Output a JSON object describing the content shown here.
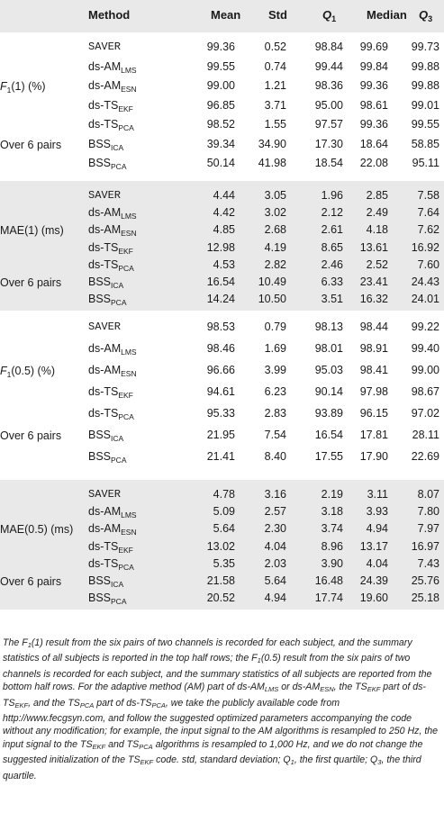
{
  "table": {
    "headers": {
      "method": "Method",
      "mean": "Mean",
      "std": "Std",
      "q1": "Q",
      "q1_sub": "1",
      "median": "Median",
      "q3": "Q",
      "q3_sub": "3"
    },
    "groups": [
      {
        "label_main": "F",
        "label_sub": "1",
        "label_rest": "(1) (%)",
        "over_label": "Over 6 pairs",
        "rows": [
          {
            "method": "SAVER",
            "sub": "",
            "mono": true,
            "mean": "99.36",
            "std": "0.52",
            "q1": "98.84",
            "median": "99.69",
            "q3": "99.73"
          },
          {
            "method": "ds-AM",
            "sub": "LMS",
            "mono": false,
            "mean": "99.55",
            "std": "0.74",
            "q1": "99.44",
            "median": "99.84",
            "q3": "99.88"
          },
          {
            "method": "ds-AM",
            "sub": "ESN",
            "mono": false,
            "mean": "99.00",
            "std": "1.21",
            "q1": "98.36",
            "median": "99.36",
            "q3": "99.88"
          },
          {
            "method": "ds-TS",
            "sub": "EKF",
            "mono": false,
            "mean": "96.85",
            "std": "3.71",
            "q1": "95.00",
            "median": "98.61",
            "q3": "99.01"
          },
          {
            "method": "ds-TS",
            "sub": "PCA",
            "mono": false,
            "mean": "98.52",
            "std": "1.55",
            "q1": "97.57",
            "median": "99.36",
            "q3": "99.55"
          },
          {
            "method": "BSS",
            "sub": "ICA",
            "mono": false,
            "mean": "39.34",
            "std": "34.90",
            "q1": "17.30",
            "median": "18.64",
            "q3": "58.85"
          },
          {
            "method": "BSS",
            "sub": "PCA",
            "mono": false,
            "mean": "50.14",
            "std": "41.98",
            "q1": "18.54",
            "median": "22.08",
            "q3": "95.11"
          }
        ]
      },
      {
        "label_main": "MAE(1) (ms)",
        "label_sub": "",
        "label_rest": "",
        "over_label": "Over 6 pairs",
        "rows": [
          {
            "method": "SAVER",
            "sub": "",
            "mono": true,
            "mean": "4.44",
            "std": "3.05",
            "q1": "1.96",
            "median": "2.85",
            "q3": "7.58"
          },
          {
            "method": "ds-AM",
            "sub": "LMS",
            "mono": false,
            "mean": "4.42",
            "std": "3.02",
            "q1": "2.12",
            "median": "2.49",
            "q3": "7.64"
          },
          {
            "method": "ds-AM",
            "sub": "ESN",
            "mono": false,
            "mean": "4.85",
            "std": "2.68",
            "q1": "2.61",
            "median": "4.18",
            "q3": "7.62"
          },
          {
            "method": "ds-TS",
            "sub": "EKF",
            "mono": false,
            "mean": "12.98",
            "std": "4.19",
            "q1": "8.65",
            "median": "13.61",
            "q3": "16.92"
          },
          {
            "method": "ds-TS",
            "sub": "PCA",
            "mono": false,
            "mean": "4.53",
            "std": "2.82",
            "q1": "2.46",
            "median": "2.52",
            "q3": "7.60"
          },
          {
            "method": "BSS",
            "sub": "ICA",
            "mono": false,
            "mean": "16.54",
            "std": "10.49",
            "q1": "6.33",
            "median": "23.41",
            "q3": "24.43"
          },
          {
            "method": "BSS",
            "sub": "PCA",
            "mono": false,
            "mean": "14.24",
            "std": "10.50",
            "q1": "3.51",
            "median": "16.32",
            "q3": "24.01"
          }
        ]
      },
      {
        "label_main": "F",
        "label_sub": "1",
        "label_rest": "(0.5) (%)",
        "over_label": "Over 6 pairs",
        "rows": [
          {
            "method": "SAVER",
            "sub": "",
            "mono": true,
            "mean": "98.53",
            "std": "0.79",
            "q1": "98.13",
            "median": "98.44",
            "q3": "99.22"
          },
          {
            "method": "ds-AM",
            "sub": "LMS",
            "mono": false,
            "mean": "98.46",
            "std": "1.69",
            "q1": "98.01",
            "median": "98.91",
            "q3": "99.40"
          },
          {
            "method": "ds-AM",
            "sub": "ESN",
            "mono": false,
            "mean": "96.66",
            "std": "3.99",
            "q1": "95.03",
            "median": "98.41",
            "q3": "99.00"
          },
          {
            "method": "ds-TS",
            "sub": "EKF",
            "mono": false,
            "mean": "94.61",
            "std": "6.23",
            "q1": "90.14",
            "median": "97.98",
            "q3": "98.67"
          },
          {
            "method": "ds-TS",
            "sub": "PCA",
            "mono": false,
            "mean": "95.33",
            "std": "2.83",
            "q1": "93.89",
            "median": "96.15",
            "q3": "97.02"
          },
          {
            "method": "BSS",
            "sub": "ICA",
            "mono": false,
            "mean": "21.95",
            "std": "7.54",
            "q1": "16.54",
            "median": "17.81",
            "q3": "28.11"
          },
          {
            "method": "BSS",
            "sub": "PCA",
            "mono": false,
            "mean": "21.41",
            "std": "8.40",
            "q1": "17.55",
            "median": "17.90",
            "q3": "22.69"
          }
        ]
      },
      {
        "label_main": "MAE(0.5) (ms)",
        "label_sub": "",
        "label_rest": "",
        "over_label": "Over 6 pairs",
        "rows": [
          {
            "method": "SAVER",
            "sub": "",
            "mono": true,
            "mean": "4.78",
            "std": "3.16",
            "q1": "2.19",
            "median": "3.11",
            "q3": "8.07"
          },
          {
            "method": "ds-AM",
            "sub": "LMS",
            "mono": false,
            "mean": "5.09",
            "std": "2.57",
            "q1": "3.18",
            "median": "3.93",
            "q3": "7.80"
          },
          {
            "method": "ds-AM",
            "sub": "ESN",
            "mono": false,
            "mean": "5.64",
            "std": "2.30",
            "q1": "3.74",
            "median": "4.94",
            "q3": "7.97"
          },
          {
            "method": "ds-TS",
            "sub": "EKF",
            "mono": false,
            "mean": "13.02",
            "std": "4.04",
            "q1": "8.96",
            "median": "13.17",
            "q3": "16.97"
          },
          {
            "method": "ds-TS",
            "sub": "PCA",
            "mono": false,
            "mean": "5.35",
            "std": "2.03",
            "q1": "3.90",
            "median": "4.04",
            "q3": "7.43"
          },
          {
            "method": "BSS",
            "sub": "ICA",
            "mono": false,
            "mean": "21.58",
            "std": "5.64",
            "q1": "16.48",
            "median": "24.39",
            "q3": "25.76"
          },
          {
            "method": "BSS",
            "sub": "PCA",
            "mono": false,
            "mean": "20.52",
            "std": "4.94",
            "q1": "17.74",
            "median": "19.60",
            "q3": "25.18"
          }
        ]
      }
    ]
  },
  "footnote": {
    "s1": "The ",
    "s2": "F",
    "s3": "1",
    "s4": "(1) result from the six pairs of two channels is recorded for each subject, and the summary statistics of all subjects is reported in the top half rows; the ",
    "s5": "F",
    "s6": "1",
    "s7": "(0.5) result from the six pairs of two channels is recorded for each subject, and the summary statistics of all subjects are reported from the bottom half rows. For the adaptive method (AM) part of ds-AM",
    "s8": "LMS",
    "s9": " or ds-AM",
    "s10": "ESN",
    "s11": ", the TS",
    "s12": "EKF",
    "s13": " part of ds-TS",
    "s14": "EKF",
    "s15": ", and the TS",
    "s16": "PCA",
    "s17": " part of ds-TS",
    "s18": "PCA",
    "s19": ", we take the publicly available code from http://www.fecgsyn.com, and follow the suggested optimized parameters accompanying the code without any modification; for example, the input signal to the AM algorithms is resampled to 250 Hz, the input signal to the TS",
    "s20": "EKF",
    "s21": " and TS",
    "s22": "PCA",
    "s23": " algorithms is resampled to 1,000 Hz, and we do not change the suggested initialization of the TS",
    "s24": "EKF",
    "s25": " code. std, standard deviation; ",
    "s26": "Q",
    "s27": "1",
    "s28": ", the first quartile; ",
    "s29": "Q",
    "s30": "3",
    "s31": ", the third quartile."
  }
}
